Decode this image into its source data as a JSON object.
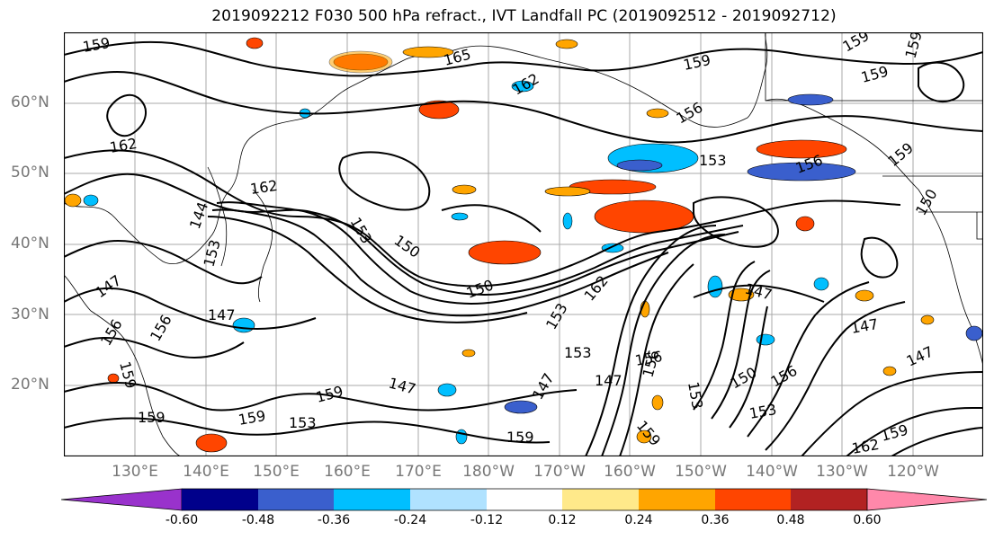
{
  "title": "2019092212 F030 500 hPa refract., IVT Landfall PC (2019092512 - 2019092712)",
  "lat_labels": [
    "60°N",
    "50°N",
    "40°N",
    "30°N",
    "20°N"
  ],
  "lon_labels": [
    "130°E",
    "140°E",
    "150°E",
    "160°E",
    "170°E",
    "180°W",
    "170°W",
    "160°W",
    "150°W",
    "140°W",
    "130°W",
    "120°W"
  ],
  "contour_labels": [
    "159",
    "165",
    "162",
    "159",
    "159",
    "159",
    "159",
    "162",
    "162",
    "156",
    "153",
    "156",
    "159",
    "150",
    "150",
    "153",
    "153",
    "144",
    "147",
    "147",
    "147",
    "147",
    "150",
    "156",
    "156",
    "159",
    "159",
    "153",
    "159",
    "159",
    "153",
    "147",
    "147",
    "153",
    "159",
    "162",
    "147",
    "156",
    "153",
    "159",
    "156",
    "150",
    "153",
    "159",
    "156",
    "147",
    "162"
  ],
  "colorbar": {
    "ticks": [
      "-0.60",
      "-0.48",
      "-0.36",
      "-0.24",
      "-0.12",
      "0.12",
      "0.24",
      "0.36",
      "0.48",
      "0.60"
    ],
    "colors": [
      "#9932cc",
      "#00008b",
      "#3a5fcd",
      "#00bfff",
      "#b0e2ff",
      "#ffffff",
      "#ffe98a",
      "#ffa500",
      "#ff4500",
      "#b22222",
      "#ff88aa"
    ]
  }
}
